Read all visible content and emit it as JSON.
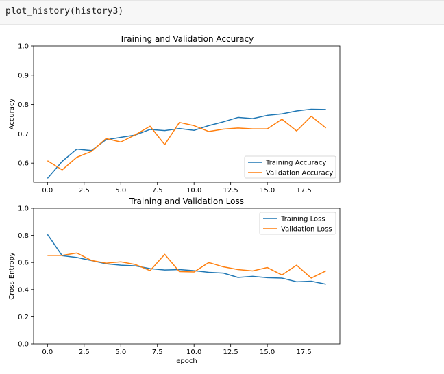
{
  "code_cell": {
    "text": "plot_history(history3)"
  },
  "chart_data": [
    {
      "type": "line",
      "title": "Training and Validation Accuracy",
      "xlabel": "",
      "ylabel": "Accuracy",
      "xlim": [
        -0.95,
        19.95
      ],
      "ylim": [
        0.535,
        1.0
      ],
      "xticks": [
        0.0,
        2.5,
        5.0,
        7.5,
        10.0,
        12.5,
        15.0,
        17.5
      ],
      "xtick_labels": [
        "0.0",
        "2.5",
        "5.0",
        "7.5",
        "10.0",
        "12.5",
        "15.0",
        "17.5"
      ],
      "yticks": [
        0.6,
        0.7,
        0.8,
        0.9,
        1.0
      ],
      "ytick_labels": [
        "0.6",
        "0.7",
        "0.8",
        "0.9",
        "1.0"
      ],
      "grid": false,
      "legend_position": "lower-right",
      "x": [
        0,
        1,
        2,
        3,
        4,
        5,
        6,
        7,
        8,
        9,
        10,
        11,
        12,
        13,
        14,
        15,
        16,
        17,
        18,
        19
      ],
      "series": [
        {
          "name": "Training Accuracy",
          "color": "#1f77b4",
          "values": [
            0.548,
            0.606,
            0.648,
            0.643,
            0.68,
            0.688,
            0.696,
            0.715,
            0.711,
            0.718,
            0.712,
            0.728,
            0.741,
            0.756,
            0.752,
            0.763,
            0.768,
            0.778,
            0.784,
            0.783
          ]
        },
        {
          "name": "Validation Accuracy",
          "color": "#ff7f0e",
          "values": [
            0.608,
            0.577,
            0.62,
            0.64,
            0.684,
            0.672,
            0.697,
            0.726,
            0.663,
            0.739,
            0.728,
            0.708,
            0.716,
            0.72,
            0.717,
            0.717,
            0.75,
            0.71,
            0.76,
            0.72
          ]
        }
      ]
    },
    {
      "type": "line",
      "title": "Training and Validation Loss",
      "xlabel": "epoch",
      "ylabel": "Cross Entropy",
      "xlim": [
        -0.95,
        19.95
      ],
      "ylim": [
        0.0,
        1.0
      ],
      "xticks": [
        0.0,
        2.5,
        5.0,
        7.5,
        10.0,
        12.5,
        15.0,
        17.5
      ],
      "xtick_labels": [
        "0.0",
        "2.5",
        "5.0",
        "7.5",
        "10.0",
        "12.5",
        "15.0",
        "17.5"
      ],
      "yticks": [
        0.0,
        0.2,
        0.4,
        0.6,
        0.8,
        1.0
      ],
      "ytick_labels": [
        "0.0",
        "0.2",
        "0.4",
        "0.6",
        "0.8",
        "1.0"
      ],
      "grid": false,
      "legend_position": "upper-right",
      "x": [
        0,
        1,
        2,
        3,
        4,
        5,
        6,
        7,
        8,
        9,
        10,
        11,
        12,
        13,
        14,
        15,
        16,
        17,
        18,
        19
      ],
      "series": [
        {
          "name": "Training Loss",
          "color": "#1f77b4",
          "values": [
            0.807,
            0.65,
            0.637,
            0.614,
            0.59,
            0.58,
            0.575,
            0.555,
            0.545,
            0.548,
            0.54,
            0.528,
            0.522,
            0.49,
            0.498,
            0.488,
            0.485,
            0.458,
            0.462,
            0.44
          ]
        },
        {
          "name": "Validation Loss",
          "color": "#ff7f0e",
          "values": [
            0.652,
            0.652,
            0.67,
            0.615,
            0.595,
            0.605,
            0.585,
            0.54,
            0.66,
            0.533,
            0.53,
            0.6,
            0.568,
            0.548,
            0.538,
            0.563,
            0.508,
            0.58,
            0.485,
            0.538
          ]
        }
      ]
    }
  ]
}
